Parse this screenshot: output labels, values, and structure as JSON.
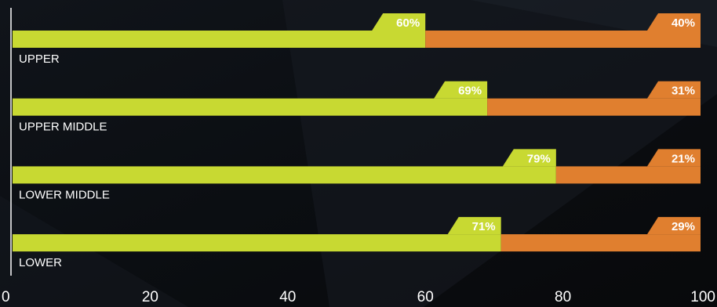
{
  "colors": {
    "background": "#0c0f13",
    "series_a": "#c8d932",
    "series_b": "#e07f2f",
    "axis": "#ffffff",
    "text": "#ffffff"
  },
  "chart_data": {
    "type": "bar",
    "orientation": "horizontal",
    "stacked": true,
    "categories": [
      "UPPER",
      "UPPER MIDDLE",
      "LOWER MIDDLE",
      "LOWER"
    ],
    "series": [
      {
        "values": [
          60,
          69,
          79,
          71
        ],
        "labels": [
          "60%",
          "69%",
          "79%",
          "71%"
        ],
        "color": "#c8d932"
      },
      {
        "values": [
          40,
          31,
          21,
          29
        ],
        "labels": [
          "40%",
          "31%",
          "21%",
          "29%"
        ],
        "color": "#e07f2f"
      }
    ],
    "xlim": [
      0,
      100
    ],
    "x_ticks": [
      "0",
      "20",
      "40",
      "60",
      "80",
      "100"
    ],
    "title": "",
    "xlabel": "",
    "ylabel": "",
    "grid": false,
    "legend": "none"
  }
}
